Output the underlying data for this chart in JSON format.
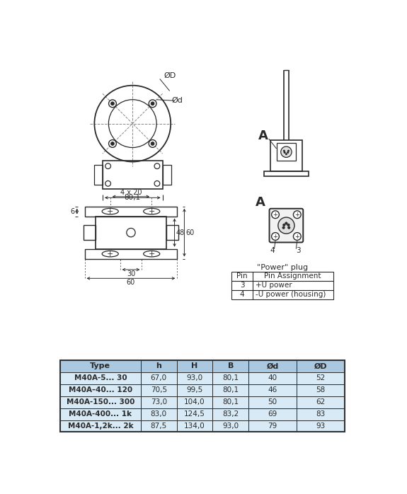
{
  "bg_color": "#ffffff",
  "draw_color": "#2a2a2a",
  "dim_color": "#2a2a2a",
  "dash_color": "#888888",
  "table_header_bg": "#aac8e0",
  "table_row_bg": "#d8eaf5",
  "table_header": [
    "Type",
    "h",
    "H",
    "B",
    "Ød",
    "ØD"
  ],
  "table_col_widths": [
    148,
    66,
    66,
    66,
    88,
    88
  ],
  "table_rows": [
    [
      "M40A-5... 30",
      "67,0",
      "93,0",
      "80,1",
      "40",
      "52"
    ],
    [
      "M40A–40... 120",
      "70,5",
      "99,5",
      "80,1",
      "46",
      "58"
    ],
    [
      "M40A-150... 300",
      "73,0",
      "104,0",
      "80,1",
      "50",
      "62"
    ],
    [
      "M40A-400... 1k",
      "83,0",
      "124,5",
      "83,2",
      "69",
      "83"
    ],
    [
      "M40A-1,2k... 2k",
      "87,5",
      "134,0",
      "93,0",
      "79",
      "93"
    ]
  ],
  "pin_header": [
    "Pin",
    "Pin Assignment"
  ],
  "pin_rows": [
    [
      "3",
      "+U power"
    ],
    [
      "4",
      "-U power (housing)"
    ]
  ]
}
